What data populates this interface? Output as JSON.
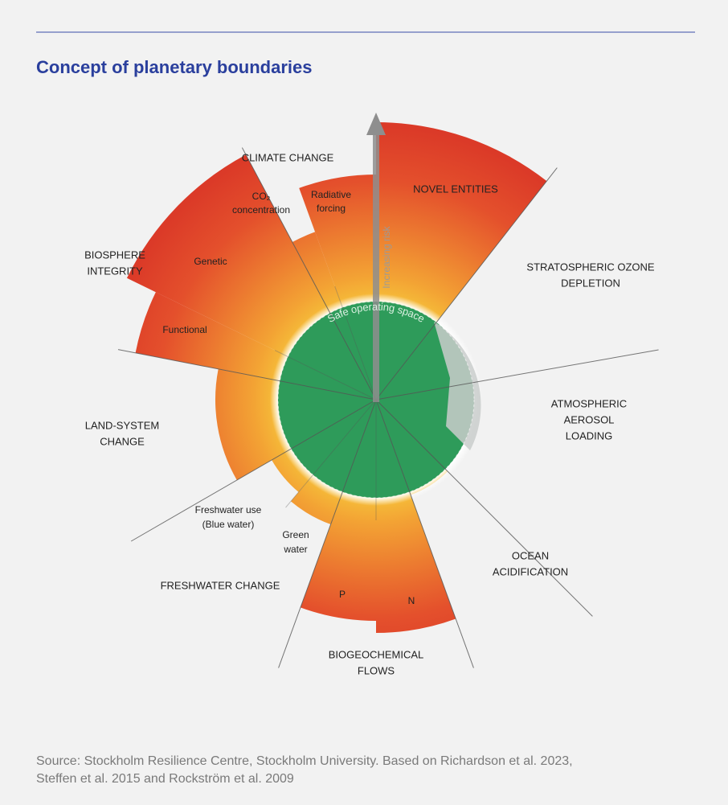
{
  "header": {
    "title": "Concept of planetary boundaries"
  },
  "diagram": {
    "center_label": "Safe operating space",
    "arrow_label": "Increasing risk",
    "boundaries": [
      {
        "lines": [
          "CLIMATE CHANGE"
        ]
      },
      {
        "lines": [
          "NOVEL ENTITIES"
        ]
      },
      {
        "lines": [
          "STRATOSPHERIC OZONE",
          "DEPLETION"
        ]
      },
      {
        "lines": [
          "ATMOSPHERIC",
          "AEROSOL",
          "LOADING"
        ]
      },
      {
        "lines": [
          "OCEAN",
          "ACIDIFICATION"
        ]
      },
      {
        "lines": [
          "BIOGEOCHEMICAL",
          "FLOWS"
        ]
      },
      {
        "lines": [
          "FRESHWATER CHANGE"
        ]
      },
      {
        "lines": [
          "LAND-SYSTEM",
          "CHANGE"
        ]
      },
      {
        "lines": [
          "BIOSPHERE",
          "INTEGRITY"
        ]
      }
    ],
    "sub_labels": [
      {
        "lines": [
          "CO₂",
          "concentration"
        ]
      },
      {
        "lines": [
          "Radiative",
          "forcing"
        ]
      },
      {
        "lines": [
          "Genetic"
        ]
      },
      {
        "lines": [
          "Functional"
        ]
      },
      {
        "lines": [
          "Freshwater use",
          "(Blue water)"
        ]
      },
      {
        "lines": [
          "Green",
          "water"
        ]
      },
      {
        "lines": [
          "P"
        ]
      },
      {
        "lines": [
          "N"
        ]
      }
    ]
  },
  "footer": {
    "source": [
      "Source: Stockholm Resilience Centre, Stockholm University. Based on Richardson et al. 2023,",
      "Steffen et al. 2015 and Rockström et al. 2009"
    ]
  }
}
